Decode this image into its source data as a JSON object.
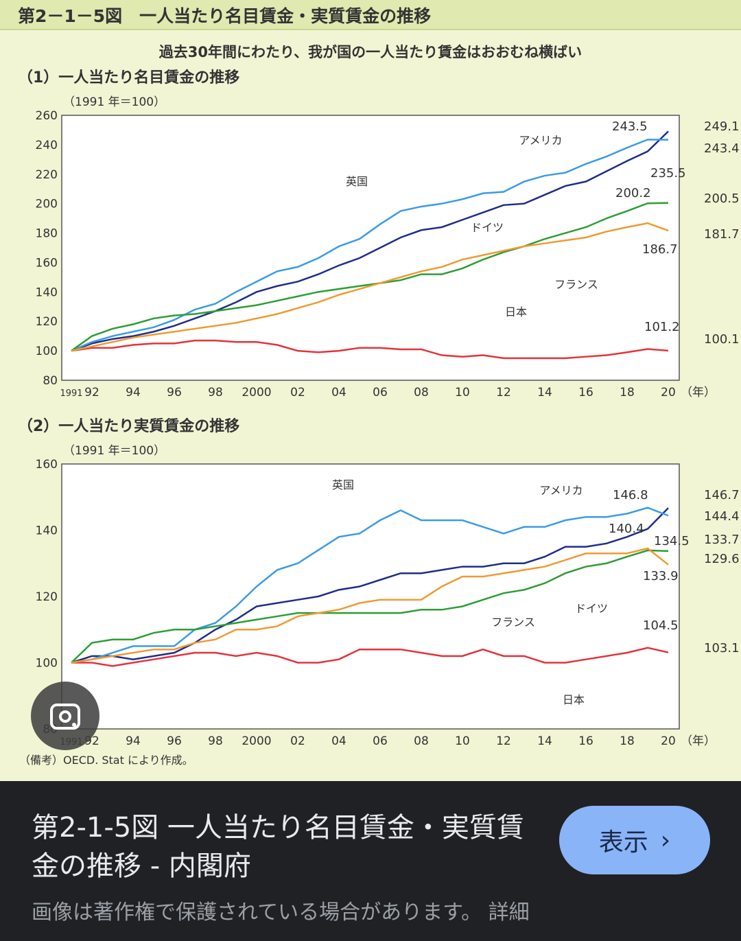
{
  "figure_title": "第2－1－5図　一人当たり名目賃金・実質賃金の推移",
  "subtitle": "過去30年間にわたり、我が国の一人当たり賃金はおおむね横ばい",
  "note": "（備考）OECD. Stat により作成。",
  "colors": {
    "日本": "#e5323b",
    "アメリカ": "#1f2d8a",
    "英国": "#3a9be6",
    "ドイツ": "#2c9e34",
    "フランス": "#f09a30"
  },
  "chart_data": [
    {
      "type": "line",
      "title": "（1）一人当たり名目賃金の推移",
      "ylabel": "（1991 年＝100）",
      "xlabel": "（年）",
      "ylim": [
        80,
        260
      ],
      "yticks": [
        80,
        100,
        120,
        140,
        160,
        180,
        200,
        220,
        240,
        260
      ],
      "xticks": [
        "1991",
        "92",
        "94",
        "96",
        "98",
        "2000",
        "02",
        "04",
        "06",
        "08",
        "10",
        "12",
        "14",
        "16",
        "18",
        "20"
      ],
      "x": [
        1991,
        1992,
        1993,
        1994,
        1995,
        1996,
        1997,
        1998,
        1999,
        2000,
        2001,
        2002,
        2003,
        2004,
        2005,
        2006,
        2007,
        2008,
        2009,
        2010,
        2011,
        2012,
        2013,
        2014,
        2015,
        2016,
        2017,
        2018,
        2019,
        2020
      ],
      "series": [
        {
          "name": "日本",
          "values": [
            100,
            102,
            102,
            104,
            105,
            105,
            107,
            107,
            106,
            106,
            104,
            100,
            99,
            100,
            102,
            102,
            101,
            101,
            97,
            96,
            97,
            95,
            95,
            95,
            95,
            96,
            97,
            99,
            101.2,
            100.1
          ]
        },
        {
          "name": "アメリカ",
          "values": [
            100,
            105,
            108,
            110,
            113,
            117,
            122,
            127,
            133,
            140,
            144,
            147,
            152,
            158,
            163,
            170,
            177,
            182,
            184,
            189,
            194,
            199,
            200,
            206,
            212,
            215,
            222,
            229,
            235.5,
            249.1
          ]
        },
        {
          "name": "英国",
          "values": [
            100,
            106,
            110,
            113,
            116,
            121,
            128,
            132,
            140,
            147,
            154,
            157,
            163,
            171,
            176,
            186,
            195,
            198,
            200,
            203,
            207,
            208,
            215,
            219,
            221,
            227,
            232,
            238,
            243.5,
            243.4
          ]
        },
        {
          "name": "ドイツ",
          "values": [
            100,
            110,
            115,
            118,
            122,
            124,
            125,
            127,
            129,
            131,
            134,
            137,
            140,
            142,
            144,
            146,
            148,
            152,
            152,
            156,
            162,
            167,
            171,
            176,
            180,
            184,
            190,
            195,
            200.2,
            200.5
          ]
        },
        {
          "name": "フランス",
          "values": [
            100,
            103,
            106,
            109,
            111,
            113,
            115,
            117,
            119,
            122,
            125,
            129,
            133,
            138,
            142,
            146,
            150,
            154,
            157,
            162,
            165,
            168,
            171,
            173,
            175,
            177,
            181,
            184,
            186.7,
            181.7
          ]
        }
      ],
      "annotations": [
        "243.5",
        "249.1",
        "243.4",
        "235.5",
        "200.2",
        "200.5",
        "181.7",
        "186.7",
        "101.2",
        "100.1"
      ]
    },
    {
      "type": "line",
      "title": "（2）一人当たり実質賃金の推移",
      "ylabel": "（1991 年＝100）",
      "xlabel": "（年）",
      "ylim": [
        80,
        160
      ],
      "yticks": [
        80,
        100,
        120,
        140,
        160
      ],
      "xticks": [
        "1991",
        "92",
        "94",
        "96",
        "98",
        "2000",
        "02",
        "04",
        "06",
        "08",
        "10",
        "12",
        "14",
        "16",
        "18",
        "20"
      ],
      "x": [
        1991,
        1992,
        1993,
        1994,
        1995,
        1996,
        1997,
        1998,
        1999,
        2000,
        2001,
        2002,
        2003,
        2004,
        2005,
        2006,
        2007,
        2008,
        2009,
        2010,
        2011,
        2012,
        2013,
        2014,
        2015,
        2016,
        2017,
        2018,
        2019,
        2020
      ],
      "series": [
        {
          "name": "日本",
          "values": [
            100,
            100,
            99,
            100,
            101,
            102,
            103,
            103,
            102,
            103,
            102,
            100,
            100,
            101,
            104,
            104,
            104,
            103,
            102,
            102,
            104,
            102,
            102,
            100,
            100,
            101,
            102,
            103,
            104.5,
            103.1
          ]
        },
        {
          "name": "アメリカ",
          "values": [
            100,
            102,
            102,
            101,
            102,
            103,
            106,
            110,
            113,
            117,
            118,
            119,
            120,
            122,
            123,
            125,
            127,
            127,
            128,
            129,
            129,
            130,
            130,
            132,
            135,
            135,
            136,
            138,
            140.4,
            146.7
          ]
        },
        {
          "name": "英国",
          "values": [
            100,
            101,
            103,
            105,
            105,
            105,
            110,
            112,
            117,
            123,
            128,
            130,
            134,
            138,
            139,
            143,
            146,
            143,
            143,
            143,
            141,
            139,
            141,
            141,
            143,
            144,
            144,
            145,
            146.8,
            144.4
          ]
        },
        {
          "name": "ドイツ",
          "values": [
            100,
            106,
            107,
            107,
            109,
            110,
            110,
            111,
            112,
            113,
            114,
            115,
            115,
            115,
            115,
            115,
            115,
            116,
            116,
            117,
            119,
            121,
            122,
            124,
            127,
            129,
            130,
            132,
            133.9,
            133.7
          ]
        },
        {
          "name": "フランス",
          "values": [
            100,
            101,
            102,
            103,
            104,
            104,
            106,
            107,
            110,
            110,
            111,
            114,
            115,
            116,
            118,
            119,
            119,
            119,
            123,
            126,
            126,
            127,
            128,
            129,
            131,
            133,
            133,
            133,
            134.5,
            129.6
          ]
        }
      ],
      "annotations": [
        "146.8",
        "146.7",
        "144.4",
        "140.4",
        "134.5",
        "133.7",
        "129.6",
        "133.9",
        "104.5",
        "103.1"
      ]
    }
  ],
  "panel": {
    "title": "第2-1-5図 一人当たり名目賃金・実質賃金の推移 - 内閣府",
    "button": "表示",
    "note": "画像は著作権で保護されている場合があります。 詳細"
  }
}
